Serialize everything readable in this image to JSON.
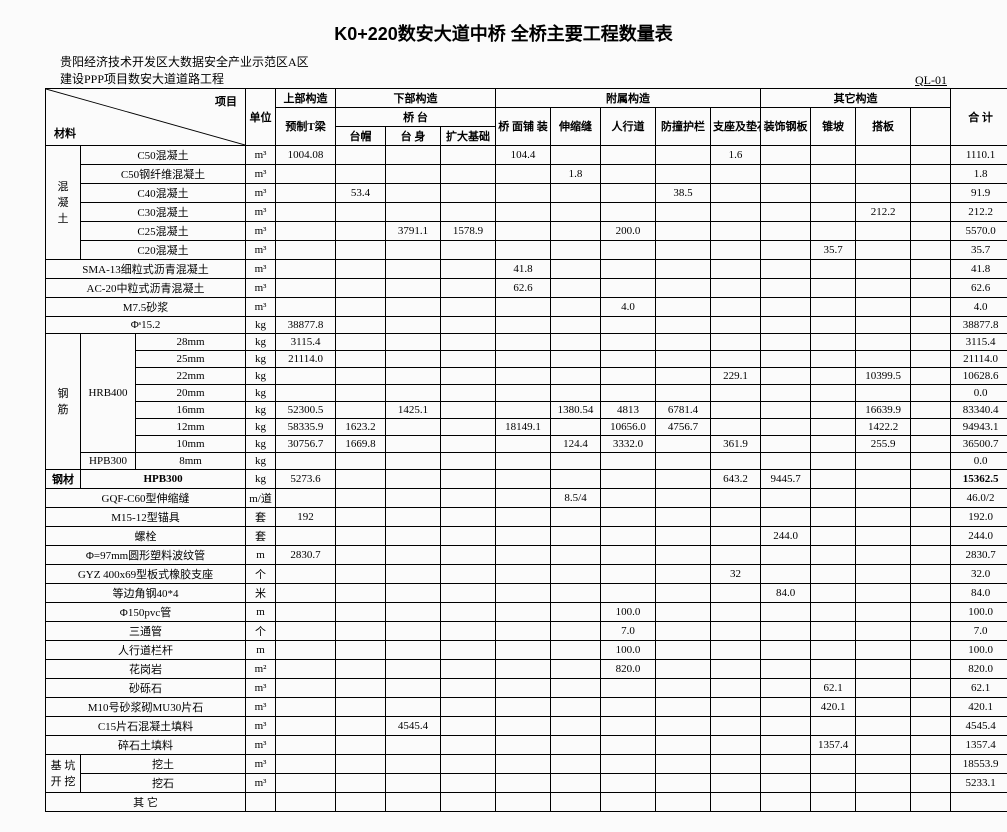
{
  "title": "K0+220数安大道中桥   全桥主要工程数量表",
  "subtitle1": "贵阳经济技术开发区大数据安全产业示范区A区",
  "subtitle2": "建设PPP项目数安大道道路工程",
  "doc_id": "QL-01",
  "header": {
    "proj": "项目",
    "mat": "材料",
    "unit": "单位",
    "upper": "上部构造",
    "lower": "下部构造",
    "append": "附属构造",
    "other": "其它构造",
    "total": "合 计",
    "precast": "预制T梁",
    "abut": "桥      台",
    "cap": "台帽",
    "body": "台 身",
    "found": "扩大基础",
    "deck": "桥 面铺 装",
    "exp": "伸缩缝",
    "walk": "人行道",
    "guard": "防撞护栏",
    "bearing": "支座及垫石",
    "decor": "装饰钢板",
    "cone": "锥坡",
    "slab": "搭板"
  },
  "rows": [
    {
      "g1": "",
      "g2": "",
      "g3": "C50混凝土",
      "u": "m³",
      "c": [
        "1004.08",
        "",
        "",
        "",
        "104.4",
        "",
        "",
        "",
        "1.6",
        "",
        "",
        "",
        ""
      ],
      "t": "1110.1"
    },
    {
      "g1": "",
      "g2": "",
      "g3": "C50钢纤维混凝土",
      "u": "m³",
      "c": [
        "",
        "",
        "",
        "",
        "",
        "1.8",
        "",
        "",
        "",
        "",
        "",
        "",
        ""
      ],
      "t": "1.8"
    },
    {
      "g1": "混",
      "g2": "",
      "g3": "C40混凝土",
      "u": "m³",
      "c": [
        "",
        "53.4",
        "",
        "",
        "",
        "",
        "",
        "38.5",
        "",
        "",
        "",
        "",
        ""
      ],
      "t": "91.9"
    },
    {
      "g1": "凝",
      "g2": "",
      "g3": "C30混凝土",
      "u": "m³",
      "c": [
        "",
        "",
        "",
        "",
        "",
        "",
        "",
        "",
        "",
        "",
        "",
        "212.2",
        ""
      ],
      "t": "212.2"
    },
    {
      "g1": "土",
      "g2": "",
      "g3": "C25混凝土",
      "u": "m³",
      "c": [
        "",
        "",
        "3791.1",
        "1578.9",
        "",
        "",
        "200.0",
        "",
        "",
        "",
        "",
        "",
        ""
      ],
      "t": "5570.0"
    },
    {
      "g1": "",
      "g2": "",
      "g3": "C20混凝土",
      "u": "m³",
      "c": [
        "",
        "",
        "",
        "",
        "",
        "",
        "",
        "",
        "",
        "",
        "35.7",
        "",
        ""
      ],
      "t": "35.7"
    },
    {
      "g1": "",
      "g2": "",
      "g3": "SMA-13细粒式沥青混凝土",
      "u": "m³",
      "c": [
        "",
        "",
        "",
        "",
        "41.8",
        "",
        "",
        "",
        "",
        "",
        "",
        "",
        ""
      ],
      "t": "41.8",
      "span": 3
    },
    {
      "g1": "",
      "g2": "",
      "g3": "AC-20中粒式沥青混凝土",
      "u": "m³",
      "c": [
        "",
        "",
        "",
        "",
        "62.6",
        "",
        "",
        "",
        "",
        "",
        "",
        "",
        ""
      ],
      "t": "62.6",
      "span": 3
    },
    {
      "g1": "",
      "g2": "",
      "g3": "M7.5砂浆",
      "u": "m³",
      "c": [
        "",
        "",
        "",
        "",
        "",
        "",
        "4.0",
        "",
        "",
        "",
        "",
        "",
        ""
      ],
      "t": "4.0",
      "span": 3
    },
    {
      "g1": "",
      "g2": "",
      "g3": "Φˢ15.2",
      "u": "kg",
      "c": [
        "38877.8",
        "",
        "",
        "",
        "",
        "",
        "",
        "",
        "",
        "",
        "",
        "",
        ""
      ],
      "t": "38877.8",
      "span": 3
    },
    {
      "g1": "",
      "g2": "",
      "g3": "28mm",
      "u": "kg",
      "c": [
        "3115.4",
        "",
        "",
        "",
        "",
        "",
        "",
        "",
        "",
        "",
        "",
        "",
        ""
      ],
      "t": "3115.4"
    },
    {
      "g1": "",
      "g2": "",
      "g3": "25mm",
      "u": "kg",
      "c": [
        "21114.0",
        "",
        "",
        "",
        "",
        "",
        "",
        "",
        "",
        "",
        "",
        "",
        ""
      ],
      "t": "21114.0"
    },
    {
      "g1": "",
      "g2": "",
      "g3": "22mm",
      "u": "kg",
      "c": [
        "",
        "",
        "",
        "",
        "",
        "",
        "",
        "",
        "229.1",
        "",
        "",
        "10399.5",
        ""
      ],
      "t": "10628.6"
    },
    {
      "g1": "钢",
      "g2": "HRB400",
      "g3": "20mm",
      "u": "kg",
      "c": [
        "",
        "",
        "",
        "",
        "",
        "",
        "",
        "",
        "",
        "",
        "",
        "",
        ""
      ],
      "t": "0.0"
    },
    {
      "g1": "筋",
      "g2": "",
      "g3": "16mm",
      "u": "kg",
      "c": [
        "52300.5",
        "",
        "1425.1",
        "",
        "",
        "1380.54",
        "4813",
        "6781.4",
        "",
        "",
        "",
        "16639.9",
        ""
      ],
      "t": "83340.4"
    },
    {
      "g1": "",
      "g2": "",
      "g3": "12mm",
      "u": "kg",
      "c": [
        "58335.9",
        "1623.2",
        "",
        "",
        "18149.1",
        "",
        "10656.0",
        "4756.7",
        "",
        "",
        "",
        "1422.2",
        ""
      ],
      "t": "94943.1"
    },
    {
      "g1": "",
      "g2": "",
      "g3": "10mm",
      "u": "kg",
      "c": [
        "30756.7",
        "1669.8",
        "",
        "",
        "",
        "124.4",
        "3332.0",
        "",
        "361.9",
        "",
        "",
        "255.9",
        ""
      ],
      "t": "36500.7"
    },
    {
      "g1": "",
      "g2": "HPB300",
      "g3": "8mm",
      "u": "kg",
      "c": [
        "",
        "",
        "",
        "",
        "",
        "",
        "",
        "",
        "",
        "",
        "",
        "",
        ""
      ],
      "t": "0.0"
    },
    {
      "g1": "钢材",
      "g2": "HPB300",
      "g3": "",
      "u": "kg",
      "c": [
        "5273.6",
        "",
        "",
        "",
        "",
        "",
        "",
        "",
        "643.2",
        "9445.7",
        "",
        "",
        ""
      ],
      "t": "15362.5",
      "bold": true
    },
    {
      "g1": "",
      "g2": "",
      "g3": "GQF-C60型伸缩缝",
      "u": "m/道",
      "c": [
        "",
        "",
        "",
        "",
        "",
        "8.5/4",
        "",
        "",
        "",
        "",
        "",
        "",
        ""
      ],
      "t": "46.0/2",
      "span": 3
    },
    {
      "g1": "",
      "g2": "",
      "g3": "M15-12型锚具",
      "u": "套",
      "c": [
        "192",
        "",
        "",
        "",
        "",
        "",
        "",
        "",
        "",
        "",
        "",
        "",
        ""
      ],
      "t": "192.0",
      "span": 3
    },
    {
      "g1": "",
      "g2": "",
      "g3": "螺栓",
      "u": "套",
      "c": [
        "",
        "",
        "",
        "",
        "",
        "",
        "",
        "",
        "",
        "244.0",
        "",
        "",
        ""
      ],
      "t": "244.0",
      "span": 3
    },
    {
      "g1": "",
      "g2": "",
      "g3": "Φ=97mm圆形塑料波纹管",
      "u": "m",
      "c": [
        "2830.7",
        "",
        "",
        "",
        "",
        "",
        "",
        "",
        "",
        "",
        "",
        "",
        ""
      ],
      "t": "2830.7",
      "span": 3
    },
    {
      "g1": "",
      "g2": "",
      "g3": "GYZ 400x69型板式橡胶支座",
      "u": "个",
      "c": [
        "",
        "",
        "",
        "",
        "",
        "",
        "",
        "",
        "32",
        "",
        "",
        "",
        ""
      ],
      "t": "32.0",
      "span": 3
    },
    {
      "g1": "",
      "g2": "",
      "g3": "等边角钢40*4",
      "u": "米",
      "c": [
        "",
        "",
        "",
        "",
        "",
        "",
        "",
        "",
        "",
        "84.0",
        "",
        "",
        ""
      ],
      "t": "84.0",
      "span": 3
    },
    {
      "g1": "",
      "g2": "",
      "g3": "Φ150pvc管",
      "u": "m",
      "c": [
        "",
        "",
        "",
        "",
        "",
        "",
        "100.0",
        "",
        "",
        "",
        "",
        "",
        ""
      ],
      "t": "100.0",
      "span": 3
    },
    {
      "g1": "",
      "g2": "",
      "g3": "三通管",
      "u": "个",
      "c": [
        "",
        "",
        "",
        "",
        "",
        "",
        "7.0",
        "",
        "",
        "",
        "",
        "",
        ""
      ],
      "t": "7.0",
      "span": 3
    },
    {
      "g1": "",
      "g2": "",
      "g3": "人行道栏杆",
      "u": "m",
      "c": [
        "",
        "",
        "",
        "",
        "",
        "",
        "100.0",
        "",
        "",
        "",
        "",
        "",
        ""
      ],
      "t": "100.0",
      "span": 3
    },
    {
      "g1": "",
      "g2": "",
      "g3": "花岗岩",
      "u": "m²",
      "c": [
        "",
        "",
        "",
        "",
        "",
        "",
        "820.0",
        "",
        "",
        "",
        "",
        "",
        ""
      ],
      "t": "820.0",
      "span": 3
    },
    {
      "g1": "",
      "g2": "",
      "g3": "砂砾石",
      "u": "m³",
      "c": [
        "",
        "",
        "",
        "",
        "",
        "",
        "",
        "",
        "",
        "",
        "62.1",
        "",
        ""
      ],
      "t": "62.1",
      "span": 3
    },
    {
      "g1": "",
      "g2": "",
      "g3": "M10号砂浆砌MU30片石",
      "u": "m³",
      "c": [
        "",
        "",
        "",
        "",
        "",
        "",
        "",
        "",
        "",
        "",
        "420.1",
        "",
        ""
      ],
      "t": "420.1",
      "span": 3
    },
    {
      "g1": "",
      "g2": "",
      "g3": "C15片石混凝土填料",
      "u": "m³",
      "c": [
        "",
        "",
        "4545.4",
        "",
        "",
        "",
        "",
        "",
        "",
        "",
        "",
        "",
        ""
      ],
      "t": "4545.4",
      "span": 3
    },
    {
      "g1": "",
      "g2": "",
      "g3": "碎石土填料",
      "u": "m³",
      "c": [
        "",
        "",
        "",
        "",
        "",
        "",
        "",
        "",
        "",
        "",
        "1357.4",
        "",
        ""
      ],
      "t": "1357.4",
      "span": 3
    },
    {
      "g1": "基 坑",
      "g2": "",
      "g3": "挖土",
      "u": "m³",
      "c": [
        "",
        "",
        "",
        "",
        "",
        "",
        "",
        "",
        "",
        "",
        "",
        "",
        ""
      ],
      "t": "18553.9"
    },
    {
      "g1": "开 挖",
      "g2": "",
      "g3": "挖石",
      "u": "m³",
      "c": [
        "",
        "",
        "",
        "",
        "",
        "",
        "",
        "",
        "",
        "",
        "",
        "",
        ""
      ],
      "t": "5233.1"
    },
    {
      "g1": "",
      "g2": "",
      "g3": "其      它",
      "u": "",
      "c": [
        "",
        "",
        "",
        "",
        "",
        "",
        "",
        "",
        "",
        "",
        "",
        "",
        ""
      ],
      "t": "",
      "span": 3
    }
  ]
}
